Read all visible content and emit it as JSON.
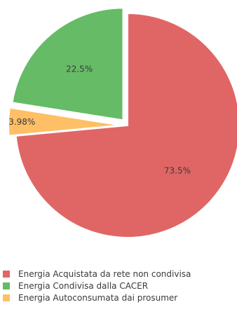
{
  "chart_data": {
    "type": "pie",
    "slices": [
      {
        "label": "Energia Acquistata da rete non condivisa",
        "value": 73.5,
        "value_label": "73.5%",
        "color": "#e06666",
        "pulled": false
      },
      {
        "label": "Energia Autoconsumata dai prosumer",
        "value": 3.98,
        "value_label": "3.98%",
        "color": "#ffbf66",
        "pulled": true
      },
      {
        "label": "Energia Condivisa dalla CACER",
        "value": 22.5,
        "value_label": "22.5%",
        "color": "#66bb66",
        "pulled": true
      }
    ],
    "legend": {
      "position": "bottom-left",
      "items": [
        {
          "label": "Energia Acquistata da rete non condivisa",
          "color": "#e06666"
        },
        {
          "label": "Energia Condivisa dalla CACER",
          "color": "#66bb66"
        },
        {
          "label": "Energia Autoconsumata dai prosumer",
          "color": "#ffbf66"
        }
      ]
    }
  }
}
